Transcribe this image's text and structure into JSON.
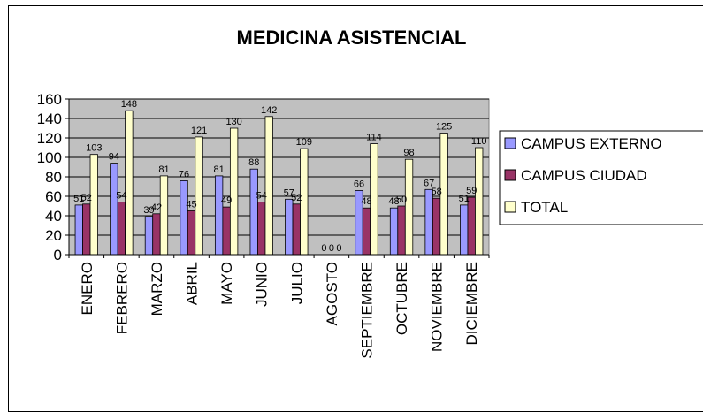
{
  "chart_data": {
    "type": "bar",
    "title": "MEDICINA ASISTENCIAL",
    "xlabel": "",
    "ylabel": "",
    "categories": [
      "ENERO",
      "FEBRERO",
      "MARZO",
      "ABRIL",
      "MAYO",
      "JUNIO",
      "JULIO",
      "AGOSTO",
      "SEPTIEMBRE",
      "OCTUBRE",
      "NOVIEMBRE",
      "DICIEMBRE"
    ],
    "series": [
      {
        "name": "CAMPUS EXTERNO",
        "color": "#9999ff",
        "values": [
          51,
          94,
          39,
          76,
          81,
          88,
          57,
          0,
          66,
          48,
          67,
          51
        ]
      },
      {
        "name": "CAMPUS CIUDAD",
        "color": "#993366",
        "values": [
          52,
          54,
          42,
          45,
          49,
          54,
          52,
          0,
          48,
          50,
          58,
          59
        ]
      },
      {
        "name": "TOTAL",
        "color": "#ffffcc",
        "values": [
          103,
          148,
          81,
          121,
          130,
          142,
          109,
          0,
          114,
          98,
          125,
          110
        ]
      }
    ],
    "ylim": [
      0,
      160
    ],
    "yticks": [
      0,
      20,
      40,
      60,
      80,
      100,
      120,
      140,
      160
    ],
    "grid": true,
    "plot_background": "#c0c0c0",
    "legend_position": "right"
  }
}
